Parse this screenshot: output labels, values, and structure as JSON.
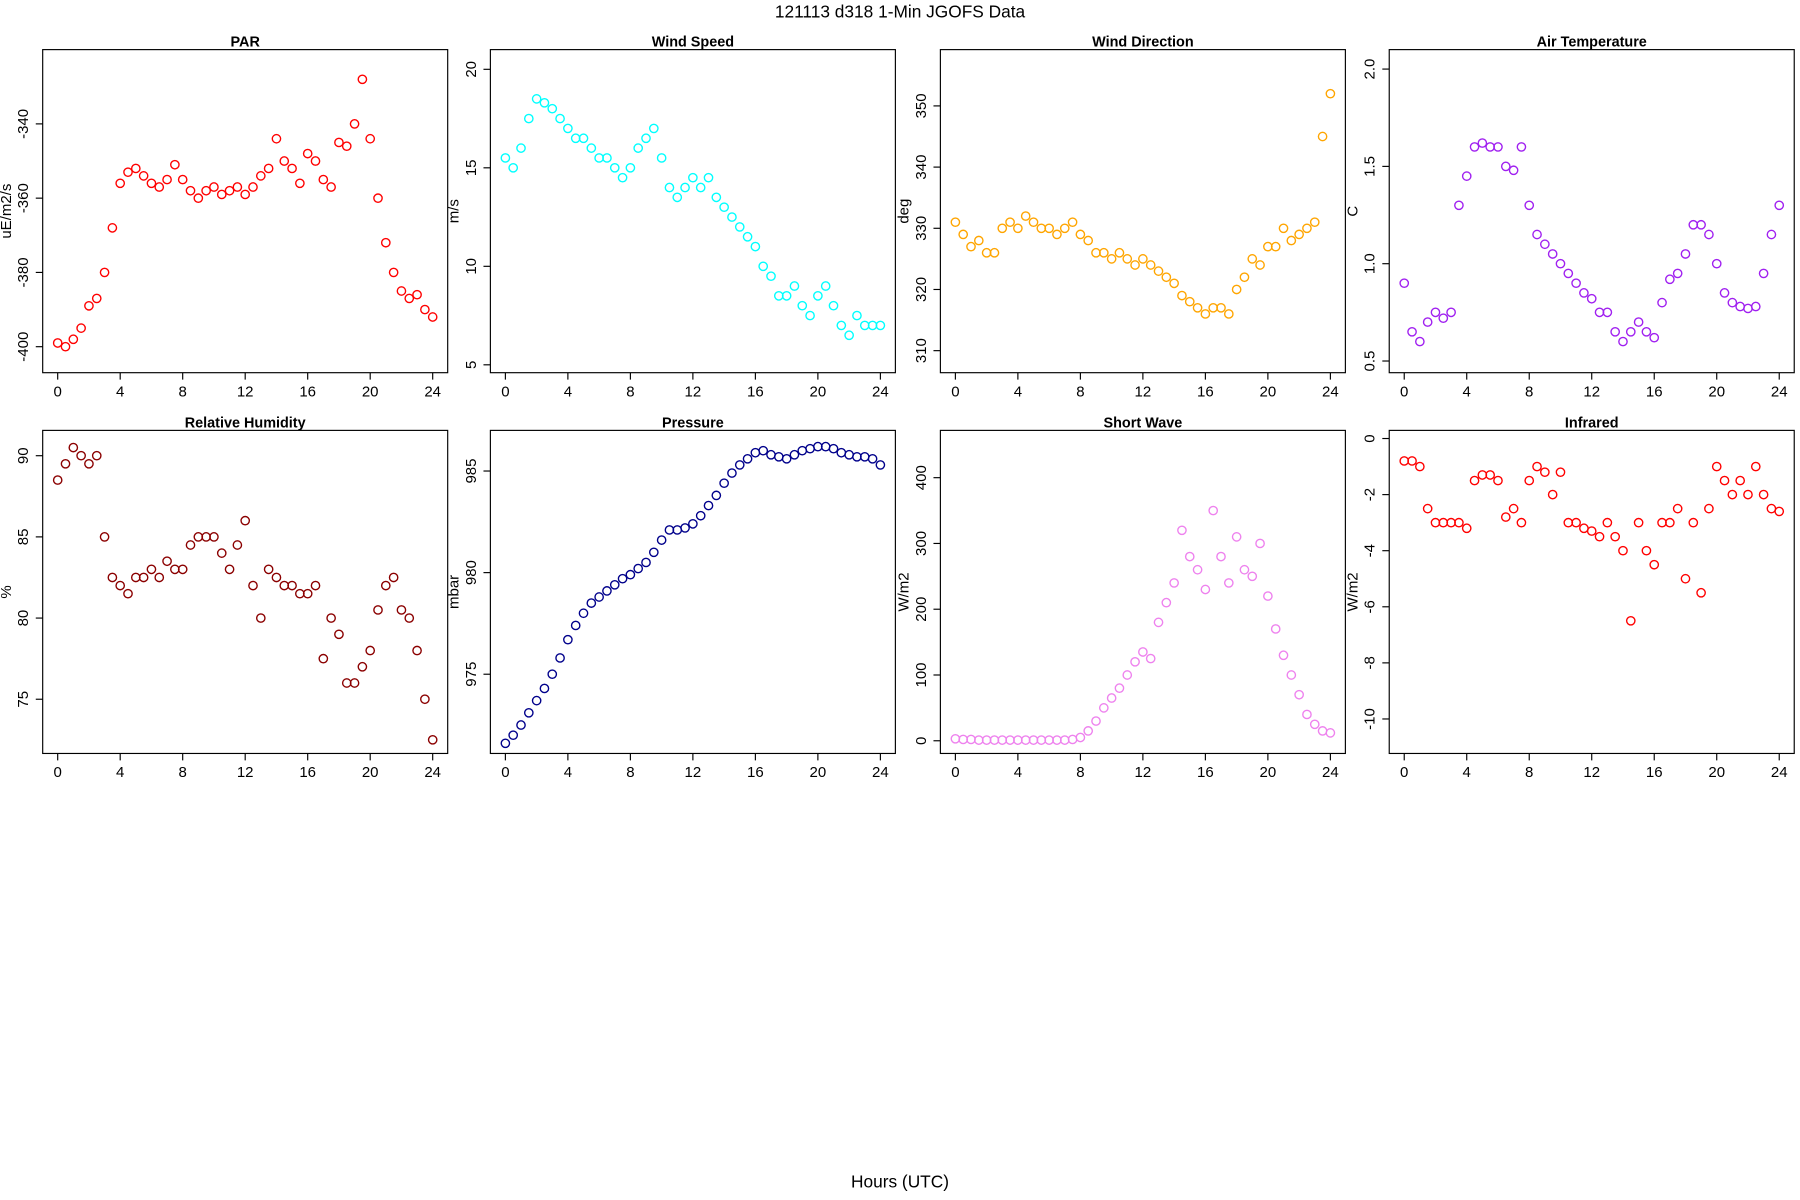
{
  "title": "121113   d318   1-Min  JGOFS Data",
  "x_label": "Hours (UTC)",
  "chart_data": [
    {
      "type": "scatter",
      "title": "PAR",
      "y_label": "uE/m2/s",
      "color": "#ff0000",
      "x": [
        0,
        0.5,
        1,
        1.5,
        2,
        2.5,
        3,
        3.5,
        4,
        4.5,
        5,
        5.5,
        6,
        6.5,
        7,
        7.5,
        8,
        8.5,
        9,
        9.5,
        10,
        10.5,
        11,
        11.5,
        12,
        12.5,
        13,
        13.5,
        14,
        14.5,
        15,
        15.5,
        16,
        16.5,
        17,
        17.5,
        18,
        18.5,
        19,
        19.5,
        20,
        20.5,
        21,
        21.5,
        22,
        22.5,
        23,
        23.5,
        24
      ],
      "values": [
        -399,
        -400,
        -398,
        -395,
        -389,
        -387,
        -380,
        -368,
        -356,
        -353,
        -352,
        -354,
        -356,
        -357,
        -355,
        -351,
        -355,
        -358,
        -360,
        -358,
        -357,
        -359,
        -358,
        -357,
        -359,
        -357,
        -354,
        -352,
        -344,
        -350,
        -352,
        -356,
        -348,
        -350,
        -355,
        -357,
        -345,
        -346,
        -340,
        -328,
        -344,
        -360,
        -372,
        -380,
        -385,
        -387,
        -386,
        -390,
        -392
      ],
      "xlim": [
        -0.96,
        24.96
      ],
      "xticks": [
        0,
        4,
        8,
        12,
        16,
        20,
        24
      ],
      "ylim": [
        -407,
        -320
      ],
      "yticks": [
        -400,
        -380,
        -360,
        -340
      ]
    },
    {
      "type": "scatter",
      "title": "Wind Speed",
      "y_label": "m/s",
      "color": "#00ffff",
      "x": [
        0,
        0.5,
        1,
        1.5,
        2,
        2.5,
        3,
        3.5,
        4,
        4.5,
        5,
        5.5,
        6,
        6.5,
        7,
        7.5,
        8,
        8.5,
        9,
        9.5,
        10,
        10.5,
        11,
        11.5,
        12,
        12.5,
        13,
        13.5,
        14,
        14.5,
        15,
        15.5,
        16,
        16.5,
        17,
        17.5,
        18,
        18.5,
        19,
        19.5,
        20,
        20.5,
        21,
        21.5,
        22,
        22.5,
        23,
        23.5,
        24
      ],
      "values": [
        15.5,
        15,
        16,
        17.5,
        18.5,
        18.3,
        18,
        17.5,
        17,
        16.5,
        16.5,
        16,
        15.5,
        15.5,
        15,
        14.5,
        15,
        16,
        16.5,
        17,
        15.5,
        14,
        13.5,
        14,
        14.5,
        14,
        14.5,
        13.5,
        13,
        12.5,
        12,
        11.5,
        11,
        10,
        9.5,
        8.5,
        8.5,
        9,
        8,
        7.5,
        8.5,
        9,
        8,
        7,
        6.5,
        7.5,
        7,
        7,
        7
      ],
      "xlim": [
        -0.96,
        24.96
      ],
      "xticks": [
        0,
        4,
        8,
        12,
        16,
        20,
        24
      ],
      "ylim": [
        4.6,
        21.0
      ],
      "yticks": [
        5,
        10,
        15,
        20
      ]
    },
    {
      "type": "scatter",
      "title": "Wind Direction",
      "y_label": "deg",
      "color": "#ffa500",
      "x": [
        0,
        0.5,
        1,
        1.5,
        2,
        2.5,
        3,
        3.5,
        4,
        4.5,
        5,
        5.5,
        6,
        6.5,
        7,
        7.5,
        8,
        8.5,
        9,
        9.5,
        10,
        10.5,
        11,
        11.5,
        12,
        12.5,
        13,
        13.5,
        14,
        14.5,
        15,
        15.5,
        16,
        16.5,
        17,
        17.5,
        18,
        18.5,
        19,
        19.5,
        20,
        20.5,
        21,
        21.5,
        22,
        22.5,
        23,
        23.5,
        24
      ],
      "values": [
        331,
        329,
        327,
        328,
        326,
        326,
        330,
        331,
        330,
        332,
        331,
        330,
        330,
        329,
        330,
        331,
        329,
        328,
        326,
        326,
        325,
        326,
        325,
        324,
        325,
        324,
        323,
        322,
        321,
        319,
        318,
        317,
        316,
        317,
        317,
        316,
        320,
        322,
        325,
        324,
        327,
        327,
        330,
        328,
        329,
        330,
        331,
        345,
        352
      ],
      "xlim": [
        -0.96,
        24.96
      ],
      "xticks": [
        0,
        4,
        8,
        12,
        16,
        20,
        24
      ],
      "ylim": [
        306.4,
        359.2
      ],
      "yticks": [
        310,
        320,
        330,
        340,
        350
      ]
    },
    {
      "type": "scatter",
      "title": "Air Temperature",
      "y_label": "C",
      "color": "#a020f0",
      "x": [
        0,
        0.5,
        1,
        1.5,
        2,
        2.5,
        3,
        3.5,
        4,
        4.5,
        5,
        5.5,
        6,
        6.5,
        7,
        7.5,
        8,
        8.5,
        9,
        9.5,
        10,
        10.5,
        11,
        11.5,
        12,
        12.5,
        13,
        13.5,
        14,
        14.5,
        15,
        15.5,
        16,
        16.5,
        17,
        17.5,
        18,
        18.5,
        19,
        19.5,
        20,
        20.5,
        21,
        21.5,
        22,
        22.5,
        23,
        23.5,
        24
      ],
      "values": [
        0.9,
        0.65,
        0.6,
        0.7,
        0.75,
        0.72,
        0.75,
        1.3,
        1.45,
        1.6,
        1.62,
        1.6,
        1.6,
        1.5,
        1.48,
        1.6,
        1.3,
        1.15,
        1.1,
        1.05,
        1.0,
        0.95,
        0.9,
        0.85,
        0.82,
        0.75,
        0.75,
        0.65,
        0.6,
        0.65,
        0.7,
        0.65,
        0.62,
        0.8,
        0.92,
        0.95,
        1.05,
        1.2,
        1.2,
        1.15,
        1.0,
        0.85,
        0.8,
        0.78,
        0.77,
        0.78,
        0.95,
        1.15,
        1.3
      ],
      "xlim": [
        -0.96,
        24.96
      ],
      "xticks": [
        0,
        4,
        8,
        12,
        16,
        20,
        24
      ],
      "ylim": [
        0.44,
        2.1
      ],
      "yticks": [
        {
          "value": 0.5,
          "label": "0.5"
        },
        {
          "value": 1,
          "label": "1.0"
        },
        {
          "value": 1.5,
          "label": "1.5"
        },
        {
          "value": 2,
          "label": "2.0"
        }
      ]
    },
    {
      "type": "scatter",
      "title": "Relative Humidity",
      "y_label": "%",
      "color": "#8b0000",
      "x": [
        0,
        0.5,
        1,
        1.5,
        2,
        2.5,
        3,
        3.5,
        4,
        4.5,
        5,
        5.5,
        6,
        6.5,
        7,
        7.5,
        8,
        8.5,
        9,
        9.5,
        10,
        10.5,
        11,
        11.5,
        12,
        12.5,
        13,
        13.5,
        14,
        14.5,
        15,
        15.5,
        16,
        16.5,
        17,
        17.5,
        18,
        18.5,
        19,
        19.5,
        20,
        20.5,
        21,
        21.5,
        22,
        22.5,
        23,
        23.5,
        24
      ],
      "values": [
        88.5,
        89.5,
        90.5,
        90,
        89.5,
        90,
        85,
        82.5,
        82,
        81.5,
        82.5,
        82.5,
        83,
        82.5,
        83.5,
        83,
        83,
        84.5,
        85,
        85,
        85,
        84,
        83,
        84.5,
        86,
        82,
        80,
        83,
        82.5,
        82,
        82,
        81.5,
        81.5,
        82,
        77.5,
        80,
        79,
        76,
        76,
        77,
        78,
        80.5,
        82,
        82.5,
        80.5,
        80,
        78,
        75,
        72.5
      ],
      "xlim": [
        -0.96,
        24.96
      ],
      "xticks": [
        0,
        4,
        8,
        12,
        16,
        20,
        24
      ],
      "ylim": [
        71.66,
        91.56
      ],
      "yticks": [
        75,
        80,
        85,
        90
      ]
    },
    {
      "type": "scatter",
      "title": "Pressure",
      "y_label": "mbar",
      "color": "#00008b",
      "x": [
        0,
        0.5,
        1,
        1.5,
        2,
        2.5,
        3,
        3.5,
        4,
        4.5,
        5,
        5.5,
        6,
        6.5,
        7,
        7.5,
        8,
        8.5,
        9,
        9.5,
        10,
        10.5,
        11,
        11.5,
        12,
        12.5,
        13,
        13.5,
        14,
        14.5,
        15,
        15.5,
        16,
        16.5,
        17,
        17.5,
        18,
        18.5,
        19,
        19.5,
        20,
        20.5,
        21,
        21.5,
        22,
        22.5,
        23,
        23.5,
        24
      ],
      "values": [
        971.6,
        972,
        972.5,
        973.1,
        973.7,
        974.3,
        975,
        975.8,
        976.7,
        977.4,
        978,
        978.5,
        978.8,
        979.1,
        979.4,
        979.7,
        979.9,
        980.2,
        980.5,
        981,
        981.6,
        982.1,
        982.1,
        982.2,
        982.4,
        982.8,
        983.3,
        983.8,
        984.4,
        984.9,
        985.3,
        985.6,
        985.9,
        986,
        985.8,
        985.7,
        985.6,
        985.8,
        986,
        986.1,
        986.2,
        986.2,
        986.1,
        985.9,
        985.8,
        985.7,
        985.7,
        985.6,
        985.3
      ],
      "xlim": [
        -0.96,
        24.96
      ],
      "xticks": [
        0,
        4,
        8,
        12,
        16,
        20,
        24
      ],
      "ylim": [
        971.1,
        987.0
      ],
      "yticks": [
        975,
        980,
        985
      ]
    },
    {
      "type": "scatter",
      "title": "Short Wave",
      "y_label": "W/m2",
      "color": "#ee82ee",
      "x": [
        0,
        0.5,
        1,
        1.5,
        2,
        2.5,
        3,
        3.5,
        4,
        4.5,
        5,
        5.5,
        6,
        6.5,
        7,
        7.5,
        8,
        8.5,
        9,
        9.5,
        10,
        10.5,
        11,
        11.5,
        12,
        12.5,
        13,
        13.5,
        14,
        14.5,
        15,
        15.5,
        16,
        16.5,
        17,
        17.5,
        18,
        18.5,
        19,
        19.5,
        20,
        20.5,
        21,
        21.5,
        22,
        22.5,
        23,
        23.5,
        24
      ],
      "values": [
        3,
        2,
        2,
        1,
        1,
        1,
        1,
        1,
        1,
        1,
        1,
        1,
        1,
        1,
        1,
        2,
        5,
        15,
        30,
        50,
        65,
        80,
        100,
        120,
        135,
        125,
        180,
        210,
        240,
        320,
        280,
        260,
        230,
        350,
        280,
        240,
        310,
        260,
        250,
        300,
        220,
        170,
        130,
        100,
        70,
        40,
        25,
        15,
        12
      ],
      "xlim": [
        -0.96,
        24.96
      ],
      "xticks": [
        0,
        4,
        8,
        12,
        16,
        20,
        24
      ],
      "ylim": [
        -19.3,
        471.9
      ],
      "yticks": [
        0,
        100,
        200,
        300,
        400
      ]
    },
    {
      "type": "scatter",
      "title": "Infrared",
      "y_label": "W/m2",
      "color": "#ff0000",
      "x": [
        0,
        0.5,
        1,
        1.5,
        2,
        2.5,
        3,
        3.5,
        4,
        4.5,
        5,
        5.5,
        6,
        6.5,
        7,
        7.5,
        8,
        8.5,
        9,
        9.5,
        10,
        10.5,
        11,
        11.5,
        12,
        12.5,
        13,
        13.5,
        14,
        14.5,
        15,
        15.5,
        16,
        16.5,
        17,
        17.5,
        18,
        18.5,
        19,
        19.5,
        20,
        20.5,
        21,
        21.5,
        22,
        22.5,
        23,
        23.5,
        24
      ],
      "values": [
        -0.8,
        -0.8,
        -1,
        -2.5,
        -3,
        -3,
        -3,
        -3,
        -3.2,
        -1.5,
        -1.3,
        -1.3,
        -1.5,
        -2.8,
        -2.5,
        -3,
        -1.5,
        -1,
        -1.2,
        -2,
        -1.2,
        -3,
        -3,
        -3.2,
        -3.3,
        -3.5,
        -3,
        -3.5,
        -4,
        -6.5,
        -3,
        -4,
        -4.5,
        -3,
        -3,
        -2.5,
        -5,
        -3,
        -5.5,
        -2.5,
        -1,
        -1.5,
        -2,
        -1.5,
        -2,
        -1,
        -2,
        -2.5,
        -2.6
      ],
      "xlim": [
        -0.96,
        24.96
      ],
      "xticks": [
        0,
        4,
        8,
        12,
        16,
        20,
        24
      ],
      "ylim": [
        -11.23,
        0.29
      ],
      "yticks": [
        -10,
        -8,
        -6,
        -4,
        -2,
        0
      ]
    }
  ]
}
